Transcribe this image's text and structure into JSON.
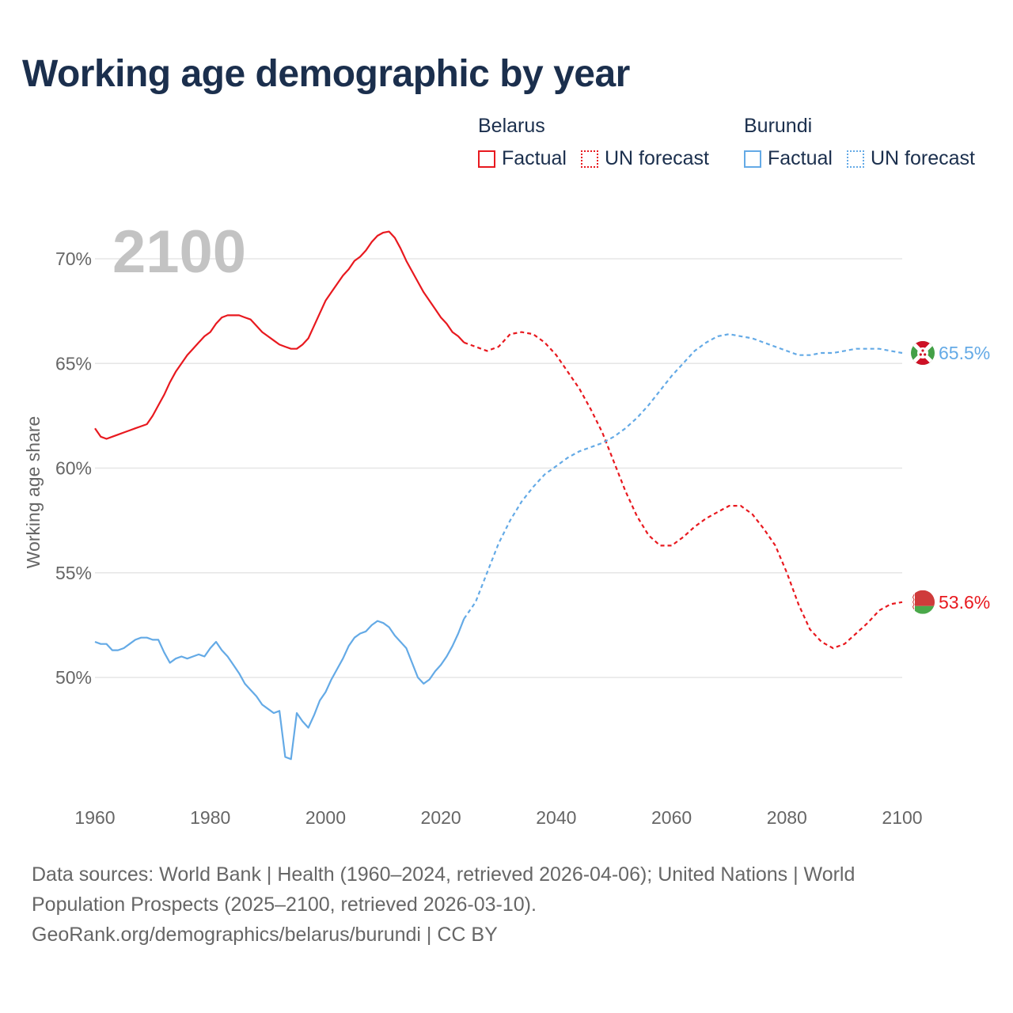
{
  "title": "Working age demographic by year",
  "legend": {
    "groups": [
      {
        "name": "Belarus",
        "color": "#e8191f",
        "factual": "Factual",
        "forecast": "UN forecast"
      },
      {
        "name": "Burundi",
        "color": "#64aae6",
        "factual": "Factual",
        "forecast": "UN forecast"
      }
    ]
  },
  "footer": {
    "sources": "Data sources: World Bank | Health (1960–2024, retrieved 2026-04-06); United Nations | World Population Prospects (2025–2100, retrieved 2026-03-10).",
    "attribution": "GeoRank.org/demographics/belarus/burundi | CC BY"
  },
  "chart_data": {
    "type": "line",
    "title": "Working age demographic by year",
    "current_year_label": "2100",
    "xlabel": "",
    "ylabel": "Working age share",
    "xlim": [
      1960,
      2100
    ],
    "ylim": [
      46,
      72
    ],
    "x_ticks": [
      1960,
      1980,
      2000,
      2020,
      2040,
      2060,
      2080,
      2100
    ],
    "y_ticks": [
      50,
      55,
      60,
      65,
      70
    ],
    "y_tick_labels": [
      "50%",
      "55%",
      "60%",
      "65%",
      "70%"
    ],
    "grid": "horizontal",
    "series": [
      {
        "name": "Belarus",
        "color": "#e8191f",
        "end_label": "53.6%",
        "factual": [
          [
            1960,
            61.9
          ],
          [
            1961,
            61.5
          ],
          [
            1962,
            61.4
          ],
          [
            1963,
            61.5
          ],
          [
            1964,
            61.6
          ],
          [
            1965,
            61.7
          ],
          [
            1966,
            61.8
          ],
          [
            1967,
            61.9
          ],
          [
            1968,
            62.0
          ],
          [
            1969,
            62.1
          ],
          [
            1970,
            62.5
          ],
          [
            1971,
            63.0
          ],
          [
            1972,
            63.5
          ],
          [
            1973,
            64.1
          ],
          [
            1974,
            64.6
          ],
          [
            1975,
            65.0
          ],
          [
            1976,
            65.4
          ],
          [
            1977,
            65.7
          ],
          [
            1978,
            66.0
          ],
          [
            1979,
            66.3
          ],
          [
            1980,
            66.5
          ],
          [
            1981,
            66.9
          ],
          [
            1982,
            67.2
          ],
          [
            1983,
            67.3
          ],
          [
            1984,
            67.3
          ],
          [
            1985,
            67.3
          ],
          [
            1986,
            67.2
          ],
          [
            1987,
            67.1
          ],
          [
            1988,
            66.8
          ],
          [
            1989,
            66.5
          ],
          [
            1990,
            66.3
          ],
          [
            1991,
            66.1
          ],
          [
            1992,
            65.9
          ],
          [
            1993,
            65.8
          ],
          [
            1994,
            65.7
          ],
          [
            1995,
            65.7
          ],
          [
            1996,
            65.9
          ],
          [
            1997,
            66.2
          ],
          [
            1998,
            66.8
          ],
          [
            1999,
            67.4
          ],
          [
            2000,
            68.0
          ],
          [
            2001,
            68.4
          ],
          [
            2002,
            68.8
          ],
          [
            2003,
            69.2
          ],
          [
            2004,
            69.5
          ],
          [
            2005,
            69.9
          ],
          [
            2006,
            70.1
          ],
          [
            2007,
            70.4
          ],
          [
            2008,
            70.8
          ],
          [
            2009,
            71.1
          ],
          [
            2010,
            71.25
          ],
          [
            2011,
            71.3
          ],
          [
            2012,
            71.0
          ],
          [
            2013,
            70.5
          ],
          [
            2014,
            69.9
          ],
          [
            2015,
            69.4
          ],
          [
            2016,
            68.9
          ],
          [
            2017,
            68.4
          ],
          [
            2018,
            68.0
          ],
          [
            2019,
            67.6
          ],
          [
            2020,
            67.2
          ],
          [
            2021,
            66.9
          ],
          [
            2022,
            66.5
          ],
          [
            2023,
            66.3
          ],
          [
            2024,
            66.0
          ]
        ],
        "forecast": [
          [
            2024,
            66.0
          ],
          [
            2026,
            65.8
          ],
          [
            2028,
            65.6
          ],
          [
            2030,
            65.8
          ],
          [
            2032,
            66.4
          ],
          [
            2034,
            66.5
          ],
          [
            2036,
            66.4
          ],
          [
            2038,
            66.0
          ],
          [
            2040,
            65.4
          ],
          [
            2042,
            64.6
          ],
          [
            2044,
            63.8
          ],
          [
            2046,
            62.8
          ],
          [
            2048,
            61.7
          ],
          [
            2050,
            60.3
          ],
          [
            2052,
            58.9
          ],
          [
            2054,
            57.7
          ],
          [
            2056,
            56.8
          ],
          [
            2058,
            56.3
          ],
          [
            2060,
            56.3
          ],
          [
            2062,
            56.7
          ],
          [
            2064,
            57.2
          ],
          [
            2066,
            57.6
          ],
          [
            2068,
            57.9
          ],
          [
            2070,
            58.2
          ],
          [
            2072,
            58.2
          ],
          [
            2074,
            57.8
          ],
          [
            2076,
            57.1
          ],
          [
            2078,
            56.3
          ],
          [
            2080,
            55.0
          ],
          [
            2082,
            53.5
          ],
          [
            2084,
            52.3
          ],
          [
            2086,
            51.7
          ],
          [
            2088,
            51.4
          ],
          [
            2090,
            51.6
          ],
          [
            2092,
            52.1
          ],
          [
            2094,
            52.6
          ],
          [
            2096,
            53.2
          ],
          [
            2098,
            53.5
          ],
          [
            2100,
            53.6
          ]
        ]
      },
      {
        "name": "Burundi",
        "color": "#64aae6",
        "end_label": "65.5%",
        "factual": [
          [
            1960,
            51.7
          ],
          [
            1961,
            51.6
          ],
          [
            1962,
            51.6
          ],
          [
            1963,
            51.3
          ],
          [
            1964,
            51.3
          ],
          [
            1965,
            51.4
          ],
          [
            1966,
            51.6
          ],
          [
            1967,
            51.8
          ],
          [
            1968,
            51.9
          ],
          [
            1969,
            51.9
          ],
          [
            1970,
            51.8
          ],
          [
            1971,
            51.8
          ],
          [
            1972,
            51.2
          ],
          [
            1973,
            50.7
          ],
          [
            1974,
            50.9
          ],
          [
            1975,
            51.0
          ],
          [
            1976,
            50.9
          ],
          [
            1977,
            51.0
          ],
          [
            1978,
            51.1
          ],
          [
            1979,
            51.0
          ],
          [
            1980,
            51.4
          ],
          [
            1981,
            51.7
          ],
          [
            1982,
            51.3
          ],
          [
            1983,
            51.0
          ],
          [
            1984,
            50.6
          ],
          [
            1985,
            50.2
          ],
          [
            1986,
            49.7
          ],
          [
            1987,
            49.4
          ],
          [
            1988,
            49.1
          ],
          [
            1989,
            48.7
          ],
          [
            1990,
            48.5
          ],
          [
            1991,
            48.3
          ],
          [
            1992,
            48.4
          ],
          [
            1993,
            46.2
          ],
          [
            1994,
            46.1
          ],
          [
            1995,
            48.3
          ],
          [
            1996,
            47.9
          ],
          [
            1997,
            47.6
          ],
          [
            1998,
            48.2
          ],
          [
            1999,
            48.9
          ],
          [
            2000,
            49.3
          ],
          [
            2001,
            49.9
          ],
          [
            2002,
            50.4
          ],
          [
            2003,
            50.9
          ],
          [
            2004,
            51.5
          ],
          [
            2005,
            51.9
          ],
          [
            2006,
            52.1
          ],
          [
            2007,
            52.2
          ],
          [
            2008,
            52.5
          ],
          [
            2009,
            52.7
          ],
          [
            2010,
            52.6
          ],
          [
            2011,
            52.4
          ],
          [
            2012,
            52.0
          ],
          [
            2013,
            51.7
          ],
          [
            2014,
            51.4
          ],
          [
            2015,
            50.7
          ],
          [
            2016,
            50.0
          ],
          [
            2017,
            49.7
          ],
          [
            2018,
            49.9
          ],
          [
            2019,
            50.3
          ],
          [
            2020,
            50.6
          ],
          [
            2021,
            51.0
          ],
          [
            2022,
            51.5
          ],
          [
            2023,
            52.1
          ],
          [
            2024,
            52.8
          ]
        ],
        "forecast": [
          [
            2024,
            52.8
          ],
          [
            2026,
            53.6
          ],
          [
            2028,
            55.0
          ],
          [
            2030,
            56.4
          ],
          [
            2032,
            57.5
          ],
          [
            2034,
            58.4
          ],
          [
            2036,
            59.1
          ],
          [
            2038,
            59.7
          ],
          [
            2040,
            60.1
          ],
          [
            2042,
            60.5
          ],
          [
            2044,
            60.8
          ],
          [
            2046,
            61.0
          ],
          [
            2048,
            61.2
          ],
          [
            2050,
            61.5
          ],
          [
            2052,
            61.9
          ],
          [
            2054,
            62.4
          ],
          [
            2056,
            63.0
          ],
          [
            2058,
            63.7
          ],
          [
            2060,
            64.4
          ],
          [
            2062,
            65.0
          ],
          [
            2064,
            65.6
          ],
          [
            2066,
            66.0
          ],
          [
            2068,
            66.3
          ],
          [
            2070,
            66.4
          ],
          [
            2072,
            66.3
          ],
          [
            2074,
            66.2
          ],
          [
            2076,
            66.0
          ],
          [
            2078,
            65.8
          ],
          [
            2080,
            65.6
          ],
          [
            2082,
            65.4
          ],
          [
            2084,
            65.4
          ],
          [
            2086,
            65.5
          ],
          [
            2088,
            65.5
          ],
          [
            2090,
            65.6
          ],
          [
            2092,
            65.7
          ],
          [
            2094,
            65.7
          ],
          [
            2096,
            65.7
          ],
          [
            2098,
            65.6
          ],
          [
            2100,
            65.5
          ]
        ]
      }
    ]
  }
}
